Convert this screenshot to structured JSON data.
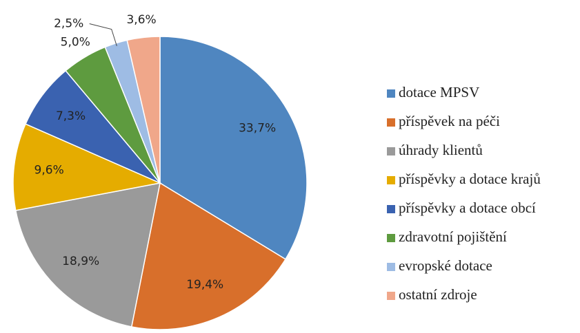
{
  "chart_data": {
    "type": "pie",
    "categories": [
      "dotace MPSV",
      "příspěvek na péči",
      "úhrady klientů",
      "příspěvky a dotace krajů",
      "příspěvky a dotace obcí",
      "zdravotní pojištění",
      "evropské dotace",
      "ostatní zdroje"
    ],
    "values": [
      33.7,
      19.4,
      18.9,
      9.6,
      7.3,
      5.0,
      2.5,
      3.6
    ],
    "value_labels": [
      "33,7%",
      "19,4%",
      "18,9%",
      "9,6%",
      "7,3%",
      "5,0%",
      "2,5%",
      "3,6%"
    ],
    "colors": [
      "#4f86c0",
      "#d86f2b",
      "#9a9a9a",
      "#e5ac00",
      "#3a62b0",
      "#5e9b3f",
      "#9ebce4",
      "#f0a78a"
    ],
    "legend": "right"
  }
}
